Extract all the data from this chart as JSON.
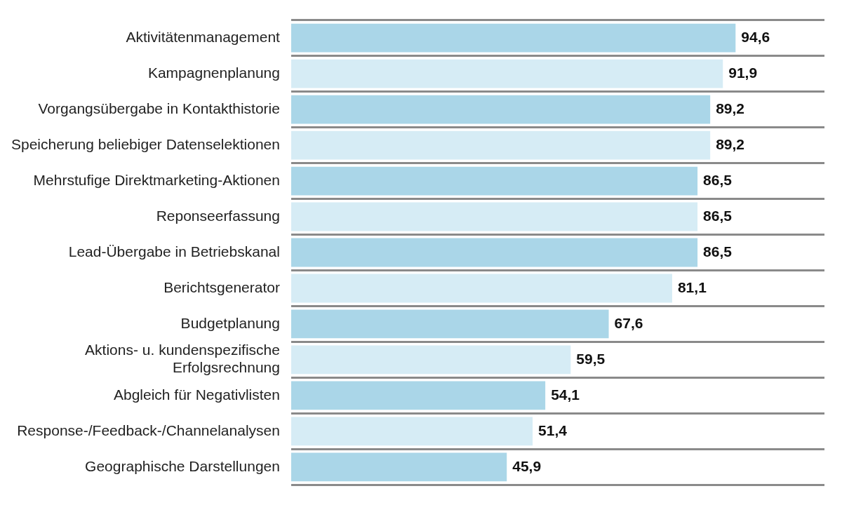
{
  "chart_data": {
    "type": "bar",
    "orientation": "horizontal",
    "categories": [
      "Aktivitätenmanagement",
      "Kampagnenplanung",
      "Vorgangsübergabe in Kontakthistorie",
      "Speicherung beliebiger Datenselektionen",
      "Mehrstufige Direktmarketing-Aktionen",
      "Reponseerfassung",
      "Lead-Übergabe in Betriebskanal",
      "Berichtsgenerator",
      "Budgetplanung",
      "Aktions- u. kundenspezifische Erfolgsrechnung",
      "Abgleich für Negativlisten",
      "Response-/Feedback-/Channelanalysen",
      "Geographische Darstellungen"
    ],
    "values": [
      94.6,
      91.9,
      89.2,
      89.2,
      86.5,
      86.5,
      86.5,
      81.1,
      67.6,
      59.5,
      54.1,
      51.4,
      45.9
    ],
    "colors": [
      "#aad6e8",
      "#d6ecf5",
      "#aad6e8",
      "#d6ecf5",
      "#aad6e8",
      "#d6ecf5",
      "#aad6e8",
      "#d6ecf5",
      "#aad6e8",
      "#d6ecf5",
      "#aad6e8",
      "#d6ecf5",
      "#aad6e8"
    ],
    "value_labels": [
      "94,6",
      "91,9",
      "89,2",
      "89,2",
      "86,5",
      "86,5",
      "86,5",
      "81,1",
      "67,6",
      "59,5",
      "54,1",
      "51,4",
      "45,9"
    ],
    "grid": "y",
    "legend": false
  }
}
